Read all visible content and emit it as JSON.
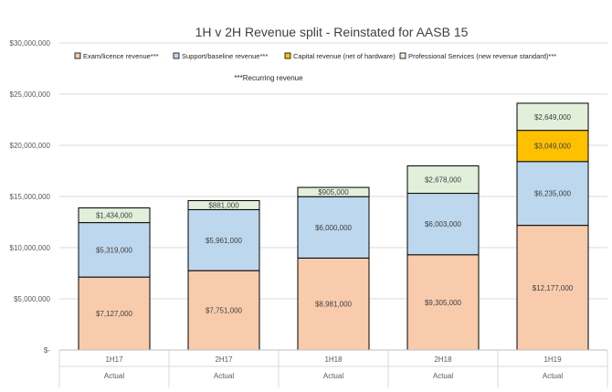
{
  "chart_data": {
    "type": "bar",
    "stacked": true,
    "title": "1H v 2H Revenue split - Reinstated for AASB 15",
    "annotation": "***Recurring revenue",
    "categories": [
      "1H17",
      "2H17",
      "1H18",
      "2H18",
      "1H19"
    ],
    "category_group_labels": [
      "Actual",
      "Actual",
      "Actual",
      "Actual",
      "Actual"
    ],
    "ylim": [
      0,
      30000000
    ],
    "y_ticks": [
      0,
      5000000,
      10000000,
      15000000,
      20000000,
      25000000,
      30000000
    ],
    "y_tick_labels": [
      "$-",
      "$5,000,000",
      "$10,000,000",
      "$15,000,000",
      "$20,000,000",
      "$25,000,000",
      "$30,000,000"
    ],
    "grid": true,
    "legend_position": "top",
    "series": [
      {
        "name": "Exam/licence revenue***",
        "color": "#F8CBAD",
        "values": [
          7127000,
          7751000,
          8981000,
          9305000,
          12177000
        ],
        "labels": [
          "$7,127,000",
          "$7,751,000",
          "$8,981,000",
          "$9,305,000",
          "$12,177,000"
        ]
      },
      {
        "name": "Support/baseline revenue***",
        "color": "#BDD7EE",
        "values": [
          5319000,
          5961000,
          6000000,
          6003000,
          6235000
        ],
        "labels": [
          "$5,319,000",
          "$5,961,000",
          "$6,000,000",
          "$6,003,000",
          "$6,235,000"
        ]
      },
      {
        "name": "Capital revenue (net of hardware)",
        "color": "#FFC000",
        "values": [
          0,
          0,
          0,
          0,
          3049000
        ],
        "labels": [
          "",
          "",
          "",
          "",
          "$3,049,000"
        ]
      },
      {
        "name": "Professional Services (new revenue standard)***",
        "color": "#E2EFDA",
        "values": [
          1434000,
          881000,
          905000,
          2678000,
          2649000
        ],
        "labels": [
          "$1,434,000",
          "$881,000",
          "$905,000",
          "$2,678,000",
          "$2,649,000"
        ]
      }
    ]
  }
}
